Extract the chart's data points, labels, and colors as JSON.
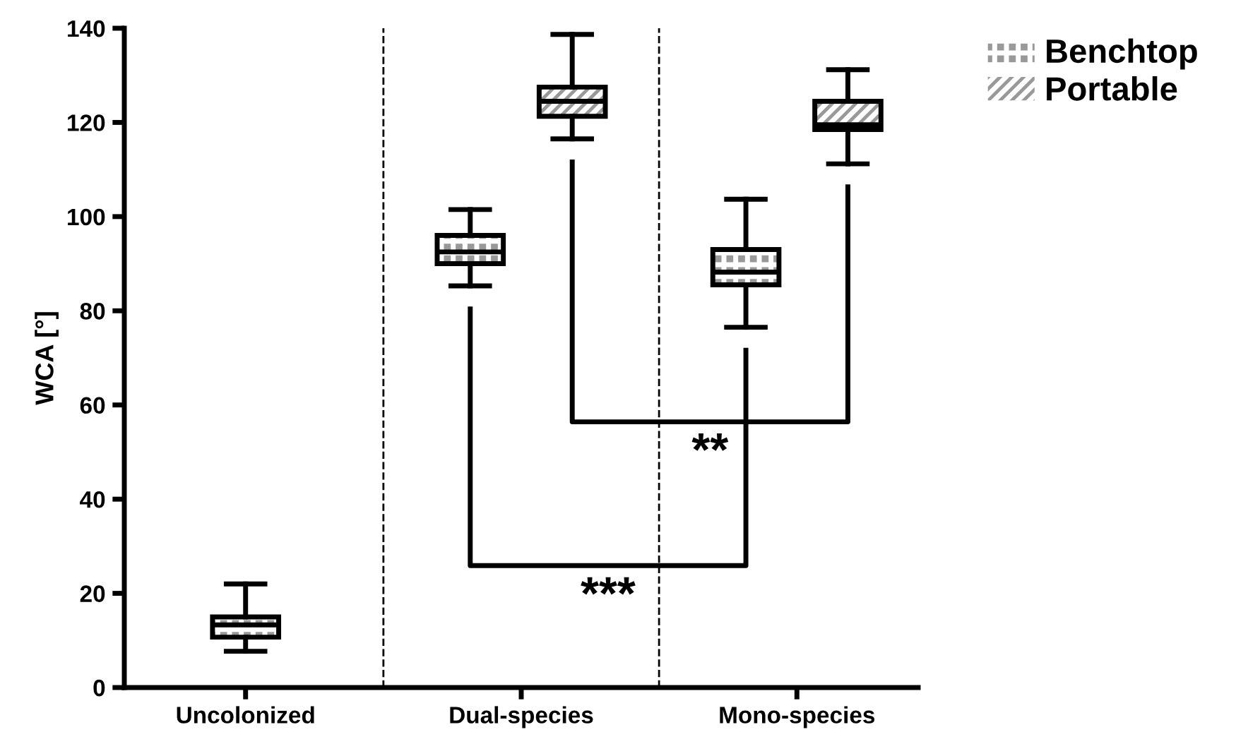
{
  "chart_data": {
    "type": "box",
    "ylabel": "WCA [°]",
    "categories": [
      "Uncolonized",
      "Dual-species",
      "Mono-species"
    ],
    "series": [
      {
        "name": "Benchtop",
        "color": "#999999",
        "boxes": [
          {
            "low": 7.7,
            "q1": 10.7,
            "median": 13.3,
            "q3": 15.0,
            "high": 22.0
          },
          {
            "low": 85.3,
            "q1": 90.0,
            "median": 92.5,
            "q3": 96.0,
            "high": 101.5
          },
          {
            "low": 76.5,
            "q1": 85.5,
            "median": 88.2,
            "q3": 93.0,
            "high": 103.7
          }
        ]
      },
      {
        "name": "Portable",
        "color": "#999999",
        "boxes": [
          null,
          {
            "low": 116.5,
            "q1": 121.3,
            "median": 124.5,
            "q3": 127.5,
            "high": 138.7
          },
          {
            "low": 111.2,
            "q1": 118.5,
            "median": 119.5,
            "q3": 124.5,
            "high": 131.2
          }
        ]
      }
    ],
    "ylim": [
      0,
      140
    ],
    "yticks": [
      0,
      20,
      40,
      60,
      80,
      100,
      120,
      140
    ],
    "annotations": [
      "***",
      "**"
    ],
    "legend": "top right",
    "grid": false
  }
}
